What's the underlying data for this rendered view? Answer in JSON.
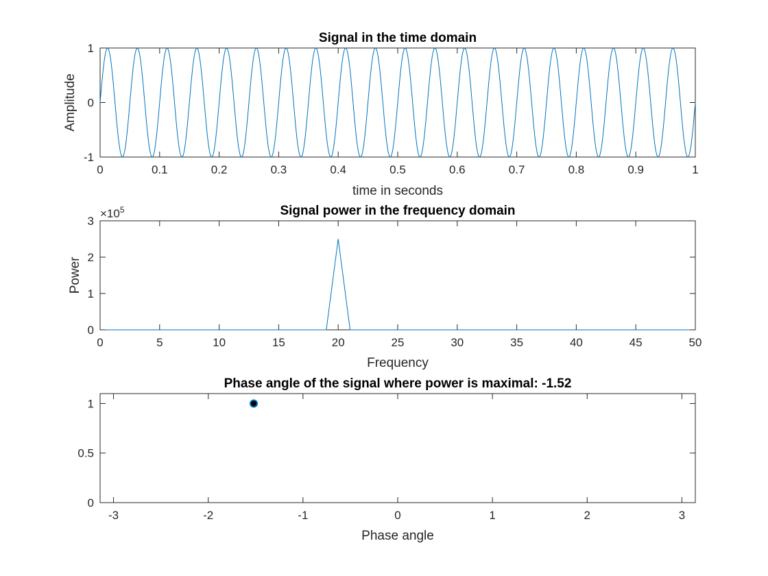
{
  "figure": {
    "background": "#ffffff",
    "series_color": "#0072bd"
  },
  "chart_data": [
    {
      "type": "line",
      "title": "Signal in the time domain",
      "xlabel": "time in seconds",
      "ylabel": "Amplitude",
      "xlim": [
        0,
        1
      ],
      "ylim": [
        -1,
        1
      ],
      "xticks": [
        0,
        0.1,
        0.2,
        0.3,
        0.4,
        0.5,
        0.6,
        0.7,
        0.8,
        0.9,
        1
      ],
      "xtick_labels": [
        "0",
        "0.1",
        "0.2",
        "0.3",
        "0.4",
        "0.5",
        "0.6",
        "0.7",
        "0.8",
        "0.9",
        "1"
      ],
      "yticks": [
        -1,
        0,
        1
      ],
      "ytick_labels": [
        "-1",
        "0",
        "1"
      ],
      "grid": false,
      "series": [
        {
          "function": "sin",
          "frequency_hz": 20,
          "amplitude": 1,
          "x_start": 0,
          "x_end": 1,
          "samples": 1000
        }
      ]
    },
    {
      "type": "line",
      "title": "Signal power in the frequency domain",
      "xlabel": "Frequency",
      "ylabel": "Power",
      "y_exponent_label": "×10",
      "y_exponent": "5",
      "xlim": [
        0,
        50
      ],
      "ylim": [
        0,
        300000
      ],
      "xticks": [
        0,
        5,
        10,
        15,
        20,
        25,
        30,
        35,
        40,
        45,
        50
      ],
      "xtick_labels": [
        "0",
        "5",
        "10",
        "15",
        "20",
        "25",
        "30",
        "35",
        "40",
        "45",
        "50"
      ],
      "yticks": [
        0,
        100000,
        200000,
        300000
      ],
      "ytick_labels": [
        "0",
        "1",
        "2",
        "3"
      ],
      "grid": false,
      "series": [
        {
          "x": [
            0,
            1,
            2,
            3,
            4,
            5,
            6,
            7,
            8,
            9,
            10,
            11,
            12,
            13,
            14,
            15,
            16,
            17,
            18,
            19,
            20,
            21,
            22,
            23,
            24,
            25,
            26,
            27,
            28,
            29,
            30,
            31,
            32,
            33,
            34,
            35,
            36,
            37,
            38,
            39,
            40,
            41,
            42,
            43,
            44,
            45,
            46,
            47,
            48,
            49,
            50
          ],
          "y": [
            0,
            0,
            0,
            0,
            0,
            0,
            0,
            0,
            0,
            0,
            0,
            0,
            0,
            0,
            0,
            0,
            0,
            0,
            0,
            0,
            250000,
            0,
            0,
            0,
            0,
            0,
            0,
            0,
            0,
            0,
            0,
            0,
            0,
            0,
            0,
            0,
            0,
            0,
            0,
            0,
            0,
            0,
            0,
            0,
            0,
            0,
            0,
            0,
            0,
            0,
            0
          ]
        }
      ]
    },
    {
      "type": "scatter",
      "title": "Phase angle of the signal where power is maximal: -1.52",
      "xlabel": "Phase angle",
      "ylabel": "",
      "xlim": [
        -3.1416,
        3.1416
      ],
      "ylim": [
        0,
        1.1
      ],
      "xticks": [
        -3,
        -2,
        -1,
        0,
        1,
        2,
        3
      ],
      "xtick_labels": [
        "-3",
        "-2",
        "-1",
        "0",
        "1",
        "2",
        "3"
      ],
      "yticks": [
        0,
        0.5,
        1
      ],
      "ytick_labels": [
        "0",
        "0.5",
        "1"
      ],
      "grid": false,
      "series": [
        {
          "x": [
            -1.52
          ],
          "y": [
            1
          ]
        }
      ]
    }
  ]
}
